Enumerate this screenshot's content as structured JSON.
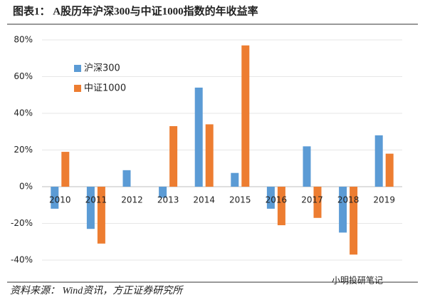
{
  "chart_data": {
    "type": "bar",
    "title": "图表1： A股历年沪深300与中证1000指数的年收益率",
    "source": "资料来源： Wind资讯，方正证券研究所",
    "categories": [
      "2010",
      "2011",
      "2012",
      "2013",
      "2014",
      "2015",
      "2016",
      "2017",
      "2018",
      "2019"
    ],
    "series": [
      {
        "name": "沪深300",
        "color": "#5b9bd5",
        "values": [
          -12,
          -23,
          9,
          -6,
          54,
          7.5,
          -12,
          22,
          -25,
          28
        ]
      },
      {
        "name": "中证1000",
        "color": "#ed7d31",
        "values": [
          19,
          -31,
          0,
          33,
          34,
          77,
          -21,
          -17,
          -37,
          18
        ]
      }
    ],
    "ylim": [
      -40,
      80
    ],
    "yticks": [
      {
        "value": -40,
        "label": "-40%"
      },
      {
        "value": -20,
        "label": "-20%"
      },
      {
        "value": 0,
        "label": "0%"
      },
      {
        "value": 20,
        "label": "20%"
      },
      {
        "value": 40,
        "label": "40%"
      },
      {
        "value": 60,
        "label": "60%"
      },
      {
        "value": 80,
        "label": "80%"
      }
    ],
    "grid": true,
    "legend": "upper left"
  },
  "watermark": "小明投研笔记"
}
